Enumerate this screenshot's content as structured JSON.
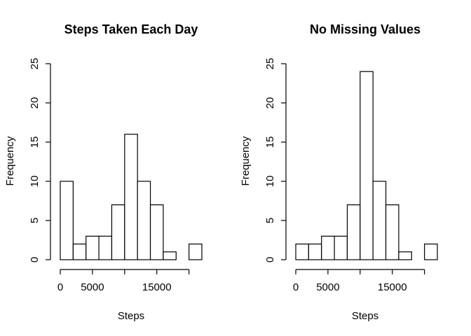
{
  "chart_data": [
    {
      "type": "bar",
      "title": "Steps Taken Each Day",
      "xlabel": "Steps",
      "ylabel": "Frequency",
      "x_bin_edges": [
        0,
        2500,
        5000,
        7500,
        10000,
        12500,
        15000,
        17500,
        20000,
        22500
      ],
      "x_range": [
        0,
        22500
      ],
      "ylim": [
        0,
        25
      ],
      "values": [
        10,
        2,
        3,
        3,
        7,
        16,
        10,
        7,
        1,
        0,
        2
      ],
      "bin_edges": [
        0,
        2000,
        4000,
        6000,
        8000,
        10000,
        12000,
        14000,
        16000,
        18000,
        20000,
        22000
      ],
      "x_ticks": [
        0,
        5000,
        15000
      ],
      "y_ticks": [
        0,
        5,
        10,
        15,
        20,
        25
      ],
      "grid": false
    },
    {
      "type": "bar",
      "title": "No Missing Values",
      "xlabel": "Steps",
      "ylabel": "Frequency",
      "ylim": [
        0,
        25
      ],
      "values": [
        2,
        2,
        3,
        3,
        7,
        24,
        10,
        7,
        1,
        0,
        2
      ],
      "bin_edges": [
        0,
        2000,
        4000,
        6000,
        8000,
        10000,
        12000,
        14000,
        16000,
        18000,
        20000,
        22000
      ],
      "x_ticks": [
        0,
        5000,
        15000
      ],
      "y_ticks": [
        0,
        5,
        10,
        15,
        20,
        25
      ],
      "grid": false
    }
  ]
}
